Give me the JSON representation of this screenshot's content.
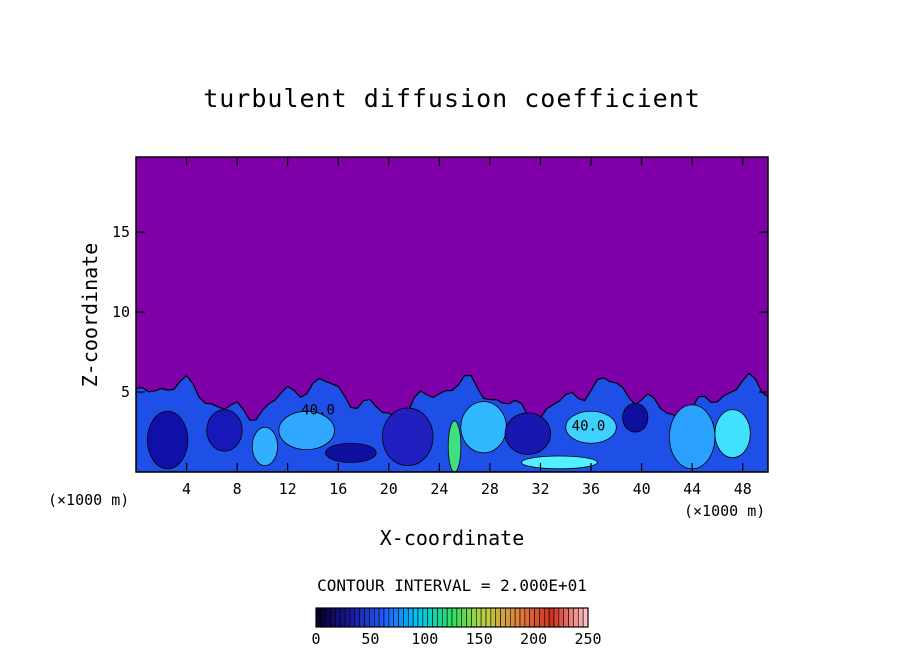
{
  "chart_data": {
    "type": "heatmap",
    "title": "turbulent diffusion coefficient",
    "xlabel": "X-coordinate",
    "ylabel": "Z-coordinate",
    "x_unit": "(×1000 m)",
    "z_unit": "(×1000 m)",
    "xlim": [
      0,
      50
    ],
    "ylim": [
      0,
      19.7
    ],
    "x_ticks": [
      4,
      8,
      12,
      16,
      20,
      24,
      28,
      32,
      36,
      40,
      44,
      48
    ],
    "y_ticks": [
      5,
      10,
      15
    ],
    "contour_interval_text": "CONTOUR INTERVAL = 2.000E+01",
    "contour_labels": [
      {
        "text": "40.0",
        "x": 14.4,
        "z": 3.6
      },
      {
        "text": "40.0",
        "x": 35.8,
        "z": 2.6
      }
    ],
    "colorbar": {
      "min": 0,
      "max": 250,
      "ticks": [
        0,
        50,
        100,
        150,
        200,
        250
      ],
      "colors": [
        "#050030",
        "#1a1aa0",
        "#2060ff",
        "#00c8f0",
        "#30e060",
        "#c0d040",
        "#e08040",
        "#d03020",
        "#ffc0c0"
      ]
    },
    "background_color": "#7f00a8",
    "layer_top_z_approx": 5.5
  }
}
